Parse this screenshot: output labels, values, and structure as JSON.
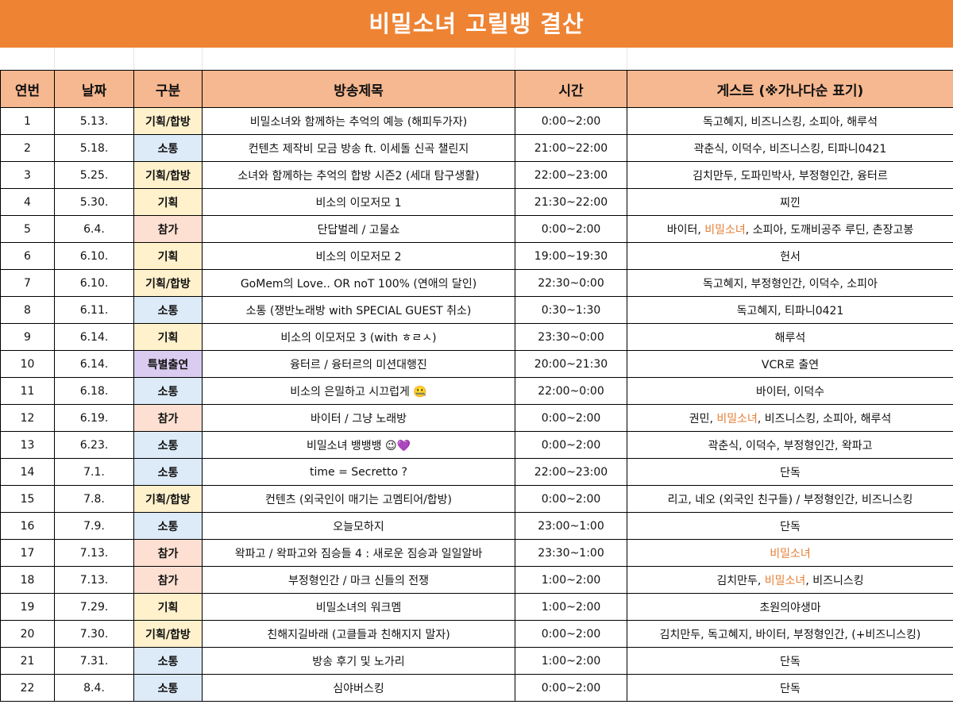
{
  "title": "비밀소녀 고릴뱅 결산",
  "headers": [
    "연번",
    "날짜",
    "구분",
    "방송제목",
    "시간",
    "게스트 (※가나다순 표기)"
  ],
  "highlight_color": "#e67e35",
  "rows": [
    {
      "no": "1",
      "date": "5.13.",
      "type": "기획/합방",
      "cat": "기획",
      "title": "비밀소녀와 함께하는 추억의 예능 (해피두가자)",
      "time": "0:00~2:00",
      "guests": [
        {
          "t": "독고혜지, 비즈니스킹, 소피아, 해루석",
          "h": false
        }
      ]
    },
    {
      "no": "2",
      "date": "5.18.",
      "type": "소통",
      "cat": "소통",
      "title": "컨텐츠 제작비 모금 방송 ft. 이세돌 신곡 챌린지",
      "time": "21:00~22:00",
      "guests": [
        {
          "t": "곽춘식, 이덕수, 비즈니스킹, 티파니0421",
          "h": false
        }
      ]
    },
    {
      "no": "3",
      "date": "5.25.",
      "type": "기획/합방",
      "cat": "기획",
      "title": "소녀와 함께하는 추억의 합방 시즌2 (세대 탐구생활)",
      "time": "22:00~23:00",
      "guests": [
        {
          "t": "김치만두, 도파민박사, 부정형인간, 융터르",
          "h": false
        }
      ]
    },
    {
      "no": "4",
      "date": "5.30.",
      "type": "기획",
      "cat": "기획",
      "title": "비소의 이모저모 1",
      "time": "21:30~22:00",
      "guests": [
        {
          "t": "찌낀",
          "h": false
        }
      ]
    },
    {
      "no": "5",
      "date": "6.4.",
      "type": "참가",
      "cat": "참가",
      "title": "단답벌레 / 고물쇼",
      "time": "0:00~2:00",
      "guests": [
        {
          "t": "바이터, ",
          "h": false
        },
        {
          "t": "비밀소녀",
          "h": true
        },
        {
          "t": ", 소피아, 도깨비공주 루딘, 촌장고봉",
          "h": false
        }
      ]
    },
    {
      "no": "6",
      "date": "6.10.",
      "type": "기획",
      "cat": "기획",
      "title": "비소의 이모저모 2",
      "time": "19:00~19:30",
      "guests": [
        {
          "t": "헌서",
          "h": false
        }
      ]
    },
    {
      "no": "7",
      "date": "6.10.",
      "type": "기획/합방",
      "cat": "기획",
      "title": "GoMem의 Love.. OR noT 100% (연애의 달인)",
      "time": "22:30~0:00",
      "guests": [
        {
          "t": "독고혜지, 부정형인간, 이덕수, 소피아",
          "h": false
        }
      ]
    },
    {
      "no": "8",
      "date": "6.11.",
      "type": "소통",
      "cat": "소통",
      "title": "소통 (쟁반노래방 with SPECIAL GUEST 취소)",
      "time": "0:30~1:30",
      "guests": [
        {
          "t": "독고혜지, 티파니0421",
          "h": false
        }
      ]
    },
    {
      "no": "9",
      "date": "6.14.",
      "type": "기획",
      "cat": "기획",
      "title": "비소의 이모저모 3 (with ㅎㄹㅅ)",
      "time": "23:30~0:00",
      "guests": [
        {
          "t": "해루석",
          "h": false
        }
      ]
    },
    {
      "no": "10",
      "date": "6.14.",
      "type": "특별출연",
      "cat": "특별",
      "title": "융터르 / 융터르의 미션대행진",
      "time": "20:00~21:30",
      "guests": [
        {
          "t": "VCR로 출연",
          "h": false
        }
      ]
    },
    {
      "no": "11",
      "date": "6.18.",
      "type": "소통",
      "cat": "소통",
      "title": "비소의 은밀하고 시끄럽게 🤐",
      "time": "22:00~0:00",
      "guests": [
        {
          "t": "바이터, 이덕수",
          "h": false
        }
      ]
    },
    {
      "no": "12",
      "date": "6.19.",
      "type": "참가",
      "cat": "참가",
      "title": "바이터 / 그냥 노래방",
      "time": "0:00~2:00",
      "guests": [
        {
          "t": "권민, ",
          "h": false
        },
        {
          "t": "비밀소녀",
          "h": true
        },
        {
          "t": ", 비즈니스킹, 소피아, 해루석",
          "h": false
        }
      ]
    },
    {
      "no": "13",
      "date": "6.23.",
      "type": "소통",
      "cat": "소통",
      "title": "비밀소녀 뱅뱅뱅 😉💜",
      "time": "0:00~2:00",
      "guests": [
        {
          "t": "곽춘식, 이덕수, 부정형인간, 왁파고",
          "h": false
        }
      ]
    },
    {
      "no": "14",
      "date": "7.1.",
      "type": "소통",
      "cat": "소통",
      "title": "time = Secretto ?",
      "time": "22:00~23:00",
      "guests": [
        {
          "t": "단독",
          "h": false
        }
      ]
    },
    {
      "no": "15",
      "date": "7.8.",
      "type": "기획/합방",
      "cat": "기획",
      "title": "컨텐츠 (외국인이 매기는 고멤티어/합방)",
      "time": "0:00~2:00",
      "guests": [
        {
          "t": "리고, 네오 (외국인 친구들) / 부정형인간, 비즈니스킹",
          "h": false
        }
      ]
    },
    {
      "no": "16",
      "date": "7.9.",
      "type": "소통",
      "cat": "소통",
      "title": "오늘모하지",
      "time": "23:00~1:00",
      "guests": [
        {
          "t": "단독",
          "h": false
        }
      ]
    },
    {
      "no": "17",
      "date": "7.13.",
      "type": "참가",
      "cat": "참가",
      "title": "왁파고 / 왁파고와 짐승들 4 : 새로운 짐승과 일일알바",
      "time": "23:30~1:00",
      "guests": [
        {
          "t": "비밀소녀",
          "h": true
        }
      ]
    },
    {
      "no": "18",
      "date": "7.13.",
      "type": "참가",
      "cat": "참가",
      "title": "부정형인간 / 마크 신들의 전쟁",
      "time": "1:00~2:00",
      "guests": [
        {
          "t": "김치만두, ",
          "h": false
        },
        {
          "t": "비밀소녀",
          "h": true
        },
        {
          "t": ", 비즈니스킹",
          "h": false
        }
      ]
    },
    {
      "no": "19",
      "date": "7.29.",
      "type": "기획",
      "cat": "기획",
      "title": "비밀소녀의 워크멤",
      "time": "1:00~2:00",
      "guests": [
        {
          "t": "초원의야생마",
          "h": false
        }
      ]
    },
    {
      "no": "20",
      "date": "7.30.",
      "type": "기획/합방",
      "cat": "기획",
      "title": "친해지길바래 (고클들과 친해지지 말자)",
      "time": "0:00~2:00",
      "guests": [
        {
          "t": "김치만두, 독고혜지, 바이터, 부정형인간, (+비즈니스킹)",
          "h": false
        }
      ]
    },
    {
      "no": "21",
      "date": "7.31.",
      "type": "소통",
      "cat": "소통",
      "title": "방송 후기 및 노가리",
      "time": "1:00~2:00",
      "guests": [
        {
          "t": "단독",
          "h": false
        }
      ]
    },
    {
      "no": "22",
      "date": "8.4.",
      "type": "소통",
      "cat": "소통",
      "title": "심야버스킹",
      "time": "0:00~2:00",
      "guests": [
        {
          "t": "단독",
          "h": false
        }
      ]
    }
  ]
}
